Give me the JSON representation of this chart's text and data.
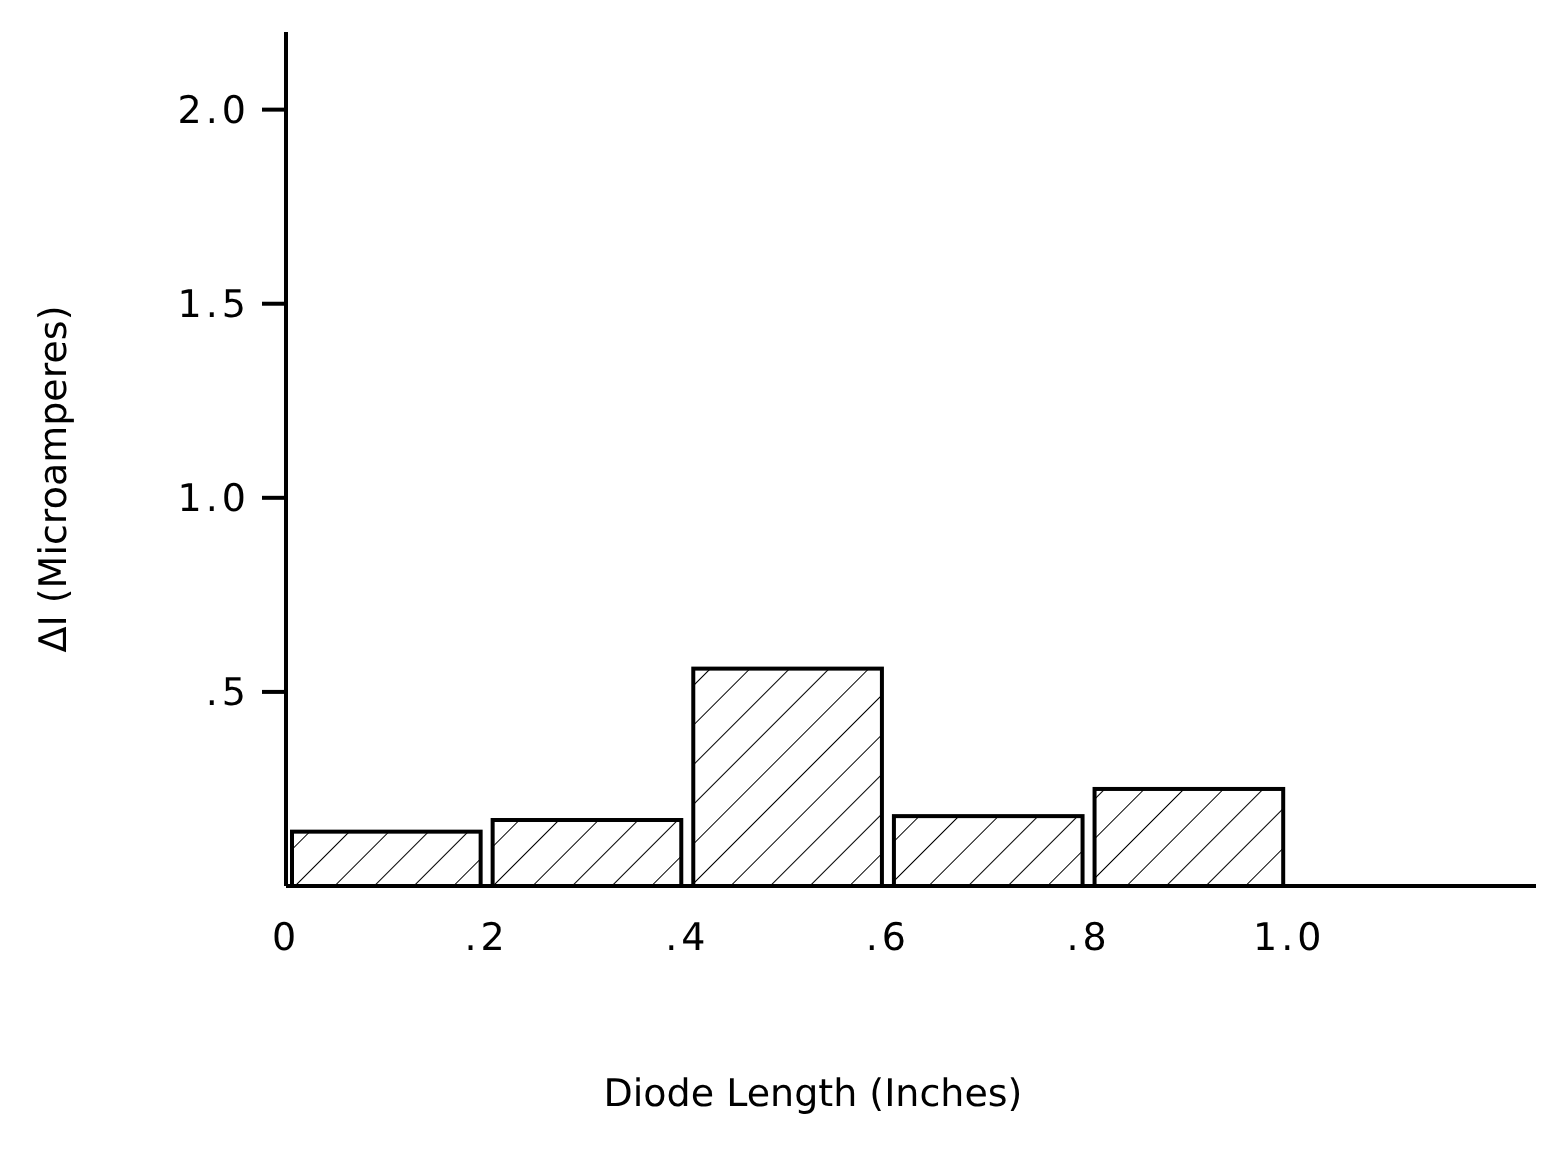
{
  "chart_data": {
    "type": "histogram",
    "xlabel": "Diode Length (Inches)",
    "ylabel": "ΔI (Microamperes)",
    "bins": [
      0,
      0.2,
      0.4,
      0.6,
      0.8,
      1.0
    ],
    "values": [
      0.14,
      0.17,
      0.56,
      0.18,
      0.25
    ],
    "color": "#000000",
    "xlim": [
      0,
      1.25
    ],
    "ylim": [
      0,
      2.2
    ],
    "xticks": [
      0,
      {
        "value": 0.2,
        "label": ".2"
      },
      {
        "value": 0.4,
        "label": ".4"
      },
      {
        "value": 0.6,
        "label": ".6"
      },
      {
        "value": 0.8,
        "label": ".8"
      },
      {
        "value": 1,
        "label": "1.0"
      }
    ],
    "yticks": [
      {
        "value": 0.5,
        "label": ".5"
      },
      {
        "value": 1,
        "label": "1.0"
      },
      {
        "value": 1.5,
        "label": "1.5"
      },
      {
        "value": 2,
        "label": "2.0"
      }
    ],
    "grid": false
  }
}
